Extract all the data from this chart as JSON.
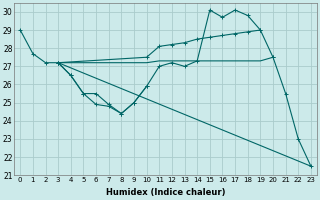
{
  "background_color": "#cceaea",
  "grid_color": "#aacccc",
  "line_color": "#006666",
  "xlabel": "Humidex (Indice chaleur)",
  "xlim": [
    -0.5,
    23.5
  ],
  "ylim": [
    21,
    30.5
  ],
  "yticks": [
    21,
    22,
    23,
    24,
    25,
    26,
    27,
    28,
    29,
    30
  ],
  "xticks": [
    0,
    1,
    2,
    3,
    4,
    5,
    6,
    7,
    8,
    9,
    10,
    11,
    12,
    13,
    14,
    15,
    16,
    17,
    18,
    19,
    20,
    21,
    22,
    23
  ],
  "series": [
    {
      "x": [
        0,
        1,
        2,
        3,
        4,
        5,
        6,
        7,
        8,
        9,
        10,
        11,
        12,
        13,
        14,
        15,
        16,
        17,
        18,
        19,
        20
      ],
      "y": [
        29,
        27.7,
        27.2,
        27.2,
        26.5,
        25.5,
        24.9,
        24.8,
        24.4,
        25.0,
        25.9,
        27.0,
        27.2,
        27.0,
        27.3,
        30.1,
        29.7,
        30.1,
        29.8,
        29.0,
        27.5
      ],
      "marker": true
    },
    {
      "x": [
        3,
        10,
        11,
        12,
        13,
        14,
        15,
        16,
        17,
        18,
        19
      ],
      "y": [
        27.2,
        27.5,
        28.1,
        28.2,
        28.3,
        28.5,
        28.6,
        28.7,
        28.8,
        28.9,
        29.0
      ],
      "marker": true
    },
    {
      "x": [
        3,
        10,
        11,
        12,
        13,
        14,
        15,
        16,
        17,
        18,
        19,
        20
      ],
      "y": [
        27.2,
        27.2,
        27.3,
        27.3,
        27.3,
        27.3,
        27.3,
        27.3,
        27.3,
        27.3,
        27.3,
        27.5
      ],
      "marker": false
    },
    {
      "x": [
        3,
        23
      ],
      "y": [
        27.2,
        21.5
      ],
      "marker": false
    },
    {
      "x": [
        3,
        4,
        5,
        6,
        7,
        8,
        9,
        10
      ],
      "y": [
        27.2,
        26.5,
        25.5,
        25.5,
        24.9,
        24.4,
        25.0,
        25.9
      ],
      "marker": true
    },
    {
      "x": [
        20,
        21,
        22,
        23
      ],
      "y": [
        27.5,
        25.5,
        23.0,
        21.5
      ],
      "marker": true
    }
  ]
}
